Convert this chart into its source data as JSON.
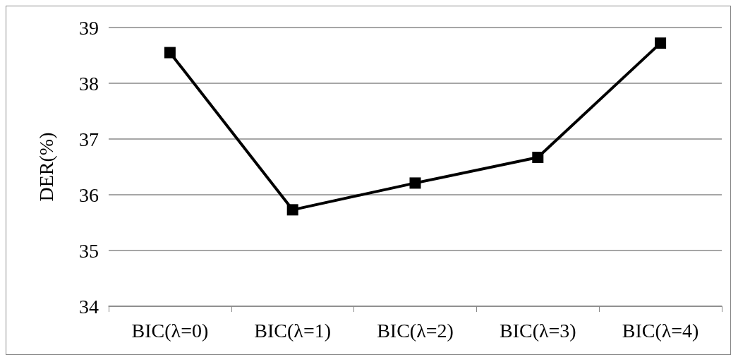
{
  "chart_data": {
    "type": "line",
    "ylabel": "DER(%)",
    "categories": [
      "BIC(λ=0)",
      "BIC(λ=1)",
      "BIC(λ=2)",
      "BIC(λ=3)",
      "BIC(λ=4)"
    ],
    "series": [
      {
        "color": "#000000",
        "values": [
          38.55,
          35.73,
          36.21,
          36.67,
          38.72
        ]
      }
    ],
    "ylim": [
      34,
      39
    ],
    "yticks": [
      34,
      35,
      36,
      37,
      38,
      39
    ],
    "grid": "y",
    "marker": "square",
    "line_style": "solid"
  }
}
